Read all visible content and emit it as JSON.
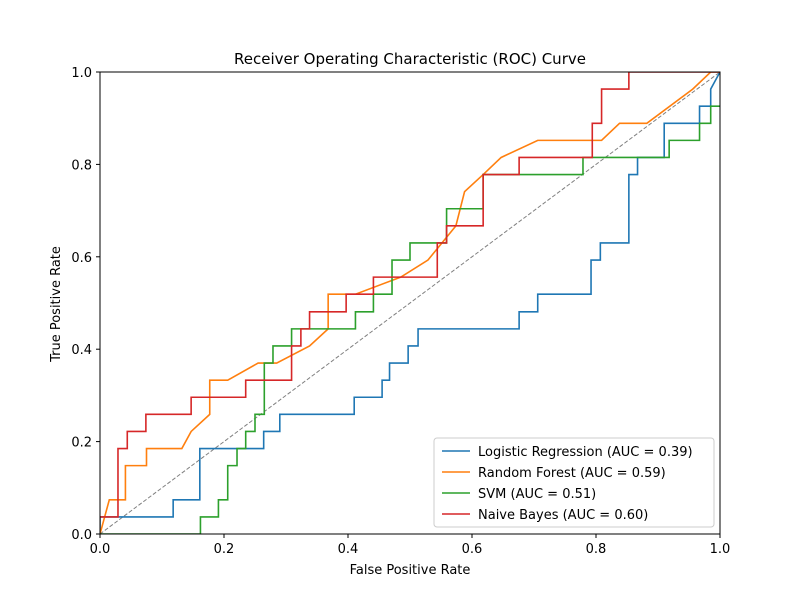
{
  "chart_data": {
    "type": "line",
    "title": "Receiver Operating Characteristic (ROC) Curve",
    "xlabel": "False Positive Rate",
    "ylabel": "True Positive Rate",
    "xlim": [
      0,
      1
    ],
    "ylim": [
      0,
      1
    ],
    "xticks": [
      "0.0",
      "0.2",
      "0.4",
      "0.6",
      "0.8",
      "1.0"
    ],
    "yticks": [
      "0.0",
      "0.2",
      "0.4",
      "0.6",
      "0.8",
      "1.0"
    ],
    "legend_position": "lower-right",
    "grid": false,
    "diagonal": {
      "x": [
        0,
        1
      ],
      "y": [
        0,
        1
      ],
      "style": "dashed",
      "color": "#808080"
    },
    "series": [
      {
        "name": "Logistic Regression (AUC = 0.39)",
        "color": "#1f77b4",
        "x": [
          0,
          0,
          0.118,
          0.118,
          0.161,
          0.161,
          0.264,
          0.264,
          0.29,
          0.29,
          0.41,
          0.41,
          0.455,
          0.455,
          0.467,
          0.467,
          0.497,
          0.497,
          0.513,
          0.513,
          0.676,
          0.676,
          0.706,
          0.706,
          0.792,
          0.792,
          0.807,
          0.807,
          0.853,
          0.853,
          0.867,
          0.867,
          0.91,
          0.91,
          0.967,
          0.967,
          0.985,
          0.985,
          1.0
        ],
        "y": [
          0,
          0.037,
          0.037,
          0.074,
          0.074,
          0.185,
          0.185,
          0.222,
          0.222,
          0.259,
          0.259,
          0.296,
          0.296,
          0.333,
          0.333,
          0.37,
          0.37,
          0.407,
          0.407,
          0.444,
          0.444,
          0.481,
          0.481,
          0.519,
          0.519,
          0.593,
          0.593,
          0.63,
          0.63,
          0.778,
          0.778,
          0.815,
          0.815,
          0.889,
          0.889,
          0.926,
          0.926,
          0.963,
          1.0
        ]
      },
      {
        "name": "Random Forest (AUC = 0.59)",
        "color": "#ff7f0e",
        "x": [
          0,
          0.015,
          0.015,
          0.041,
          0.041,
          0.075,
          0.075,
          0.132,
          0.147,
          0.177,
          0.177,
          0.206,
          0.255,
          0.285,
          0.338,
          0.368,
          0.368,
          0.412,
          0.485,
          0.529,
          0.574,
          0.588,
          0.618,
          0.647,
          0.706,
          0.721,
          0.809,
          0.838,
          0.882,
          0.956,
          0.985,
          1.0
        ],
        "y": [
          0,
          0.074,
          0.074,
          0.074,
          0.148,
          0.148,
          0.185,
          0.185,
          0.222,
          0.259,
          0.333,
          0.333,
          0.37,
          0.37,
          0.407,
          0.444,
          0.519,
          0.519,
          0.556,
          0.593,
          0.667,
          0.741,
          0.778,
          0.815,
          0.852,
          0.852,
          0.852,
          0.889,
          0.889,
          0.963,
          1.0,
          1.0
        ]
      },
      {
        "name": "SVM (AUC = 0.51)",
        "color": "#2ca02c",
        "x": [
          0,
          0.162,
          0.162,
          0.191,
          0.191,
          0.206,
          0.206,
          0.221,
          0.221,
          0.235,
          0.235,
          0.25,
          0.25,
          0.265,
          0.265,
          0.279,
          0.279,
          0.309,
          0.309,
          0.412,
          0.412,
          0.441,
          0.441,
          0.471,
          0.471,
          0.5,
          0.5,
          0.559,
          0.559,
          0.618,
          0.618,
          0.779,
          0.779,
          0.918,
          0.918,
          0.967,
          0.967,
          0.985,
          0.985,
          1.0
        ],
        "y": [
          0,
          0,
          0.037,
          0.037,
          0.074,
          0.074,
          0.148,
          0.148,
          0.185,
          0.185,
          0.222,
          0.222,
          0.259,
          0.259,
          0.37,
          0.37,
          0.407,
          0.407,
          0.444,
          0.444,
          0.481,
          0.481,
          0.519,
          0.519,
          0.593,
          0.593,
          0.63,
          0.63,
          0.704,
          0.704,
          0.778,
          0.778,
          0.815,
          0.815,
          0.852,
          0.852,
          0.889,
          0.889,
          0.926,
          0.926
        ]
      },
      {
        "name": "Naive Bayes (AUC = 0.60)",
        "color": "#d62728",
        "x": [
          0,
          0.029,
          0.029,
          0.044,
          0.044,
          0.074,
          0.074,
          0.147,
          0.147,
          0.235,
          0.235,
          0.309,
          0.309,
          0.324,
          0.324,
          0.338,
          0.338,
          0.397,
          0.397,
          0.441,
          0.441,
          0.544,
          0.544,
          0.559,
          0.559,
          0.618,
          0.618,
          0.676,
          0.676,
          0.794,
          0.794,
          0.809,
          0.809,
          0.853,
          0.853,
          1.0
        ],
        "y": [
          0.037,
          0.037,
          0.185,
          0.185,
          0.222,
          0.222,
          0.259,
          0.259,
          0.296,
          0.296,
          0.333,
          0.333,
          0.407,
          0.407,
          0.444,
          0.444,
          0.481,
          0.481,
          0.519,
          0.519,
          0.556,
          0.556,
          0.63,
          0.63,
          0.667,
          0.667,
          0.778,
          0.778,
          0.815,
          0.815,
          0.889,
          0.889,
          0.963,
          0.963,
          1.0,
          1.0
        ]
      }
    ]
  }
}
